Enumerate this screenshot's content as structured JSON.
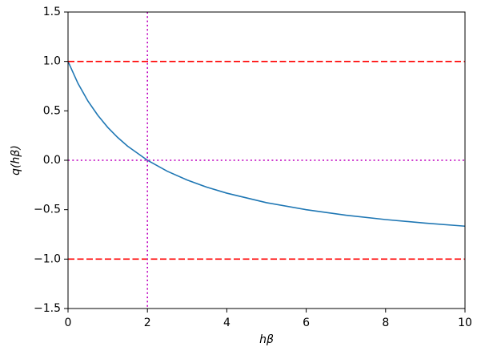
{
  "chart_data": {
    "type": "line",
    "xlabel": "hβ",
    "ylabel": "q(hβ)",
    "x": [
      0,
      0.25,
      0.5,
      0.75,
      1,
      1.25,
      1.5,
      2,
      2.5,
      3,
      3.5,
      4,
      5,
      6,
      7,
      8,
      9,
      10
    ],
    "series": [
      {
        "color": "#1f77b4",
        "values": [
          1,
          0.778,
          0.6,
          0.455,
          0.333,
          0.231,
          0.143,
          0,
          -0.111,
          -0.2,
          -0.273,
          -0.333,
          -0.429,
          -0.5,
          -0.556,
          -0.6,
          -0.636,
          -0.667
        ]
      }
    ],
    "hlines": [
      {
        "value": 1,
        "color": "#ff0000",
        "style": "dashed"
      },
      {
        "value": -1,
        "color": "#ff0000",
        "style": "dashed"
      },
      {
        "value": 0,
        "color": "#bf00bf",
        "style": "dotted"
      }
    ],
    "vlines": [
      {
        "value": 2,
        "color": "#bf00bf",
        "style": "dotted"
      }
    ],
    "xlim": [
      0,
      10
    ],
    "xticks": [
      0,
      2,
      4,
      6,
      8,
      10
    ],
    "ylim": [
      -1.5,
      1.5
    ],
    "yticks": [
      {
        "value": -1.5,
        "label": "−1.5"
      },
      {
        "value": -1,
        "label": "−1.0"
      },
      {
        "value": -0.5,
        "label": "−0.5"
      },
      {
        "value": 0,
        "label": "0.0"
      },
      {
        "value": 0.5,
        "label": "0.5"
      },
      {
        "value": 1,
        "label": "1.0"
      },
      {
        "value": 1.5,
        "label": "1.5"
      }
    ],
    "grid": false
  }
}
